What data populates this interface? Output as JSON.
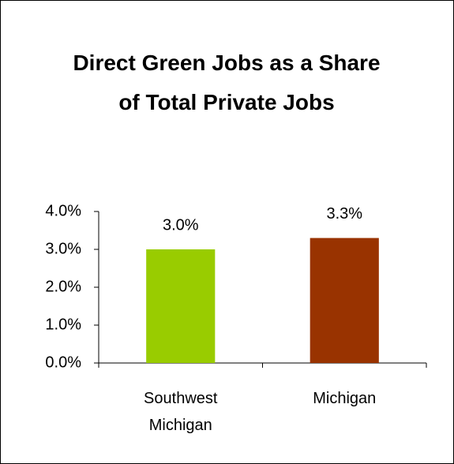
{
  "chart_data": {
    "type": "bar",
    "title": "Direct Green Jobs as a Share of Total Private Jobs",
    "categories": [
      "Southwest Michigan",
      "Michigan"
    ],
    "values": [
      3.0,
      3.3
    ],
    "value_labels": [
      "3.0%",
      "3.3%"
    ],
    "colors": [
      "#99cc00",
      "#993300"
    ],
    "ylim": [
      0,
      4
    ],
    "yticks": [
      {
        "value": 0,
        "label": "0.0%"
      },
      {
        "value": 1,
        "label": "1.0%"
      },
      {
        "value": 2,
        "label": "2.0%"
      },
      {
        "value": 3,
        "label": "3.0%"
      },
      {
        "value": 4,
        "label": "4.0%"
      }
    ],
    "grid": false
  }
}
